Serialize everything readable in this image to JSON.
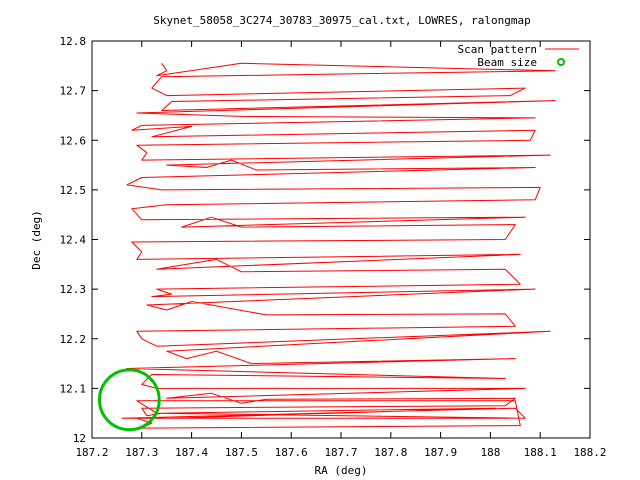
{
  "chart_data": {
    "type": "line",
    "title": "Skynet_58058_3C274_30783_30975_cal.txt, LOWRES, ralongmap",
    "xlabel": "RA (deg)",
    "ylabel": "Dec (deg)",
    "xlim": [
      187.2,
      188.2
    ],
    "ylim": [
      12.0,
      12.8
    ],
    "xticks": [
      "187.2",
      "187.3",
      "187.4",
      "187.5",
      "187.6",
      "187.7",
      "187.8",
      "187.9",
      "188",
      "188.1",
      "188.2"
    ],
    "yticks": [
      "12",
      "12.1",
      "12.2",
      "12.3",
      "12.4",
      "12.5",
      "12.6",
      "12.7",
      "12.8"
    ],
    "grid": false,
    "legend_position": "top-right",
    "series": [
      {
        "name": "Scan pattern",
        "color": "#ff0000",
        "style": "line",
        "x": [
          187.34,
          187.35,
          187.33,
          187.5,
          188.13,
          187.34,
          187.32,
          187.35,
          188.07,
          188.04,
          187.36,
          187.34,
          188.13,
          187.29,
          187.5,
          188.09,
          187.3,
          187.28,
          187.4,
          187.32,
          188.09,
          188.08,
          187.29,
          187.31,
          187.3,
          188.12,
          187.35,
          187.43,
          187.48,
          187.53,
          188.09,
          187.3,
          187.27,
          187.34,
          188.1,
          188.09,
          187.35,
          187.28,
          187.3,
          188.07,
          187.38,
          187.44,
          187.5,
          188.05,
          188.03,
          187.28,
          187.3,
          187.29,
          188.06,
          187.33,
          187.36,
          187.45,
          187.5,
          188.03,
          188.06,
          187.33,
          187.36,
          187.32,
          188.09,
          187.31,
          187.35,
          187.4,
          187.55,
          188.03,
          188.05,
          187.29,
          187.3,
          187.33,
          188.12,
          187.35,
          187.39,
          187.45,
          187.52,
          188.05,
          187.27,
          188.03,
          187.32,
          187.3,
          187.33,
          188.07,
          187.35,
          187.44,
          187.5,
          187.55,
          188.05,
          188.03,
          187.3,
          187.31,
          187.34,
          188.01,
          187.36,
          187.29,
          187.32,
          187.3,
          188.06,
          188.05,
          187.29,
          187.33,
          188.07,
          188.05,
          187.26,
          188.04
        ],
        "y": [
          12.755,
          12.74,
          12.73,
          12.755,
          12.74,
          12.728,
          12.705,
          12.69,
          12.705,
          12.69,
          12.678,
          12.66,
          12.68,
          12.655,
          12.648,
          12.645,
          12.63,
          12.62,
          12.628,
          12.607,
          12.62,
          12.6,
          12.59,
          12.575,
          12.56,
          12.57,
          12.55,
          12.545,
          12.56,
          12.54,
          12.545,
          12.525,
          12.51,
          12.5,
          12.505,
          12.48,
          12.47,
          12.462,
          12.44,
          12.445,
          12.425,
          12.445,
          12.425,
          12.43,
          12.4,
          12.395,
          12.375,
          12.36,
          12.37,
          12.34,
          12.345,
          12.36,
          12.335,
          12.34,
          12.31,
          12.3,
          12.29,
          12.285,
          12.3,
          12.268,
          12.258,
          12.275,
          12.248,
          12.25,
          12.225,
          12.215,
          12.2,
          12.185,
          12.215,
          12.175,
          12.16,
          12.175,
          12.15,
          12.16,
          12.14,
          12.12,
          12.128,
          12.108,
          12.1,
          12.1,
          12.08,
          12.09,
          12.07,
          12.078,
          12.08,
          12.065,
          12.06,
          12.045,
          12.05,
          12.06,
          12.04,
          12.04,
          12.03,
          12.02,
          12.025,
          12.075,
          12.075,
          12.05,
          12.04,
          12.06,
          12.04,
          12.04
        ]
      },
      {
        "name": "Beam size",
        "color": "#00c000",
        "style": "circle",
        "x": [
          187.275
        ],
        "y": [
          12.077
        ],
        "diameter_deg": 0.12
      }
    ]
  }
}
